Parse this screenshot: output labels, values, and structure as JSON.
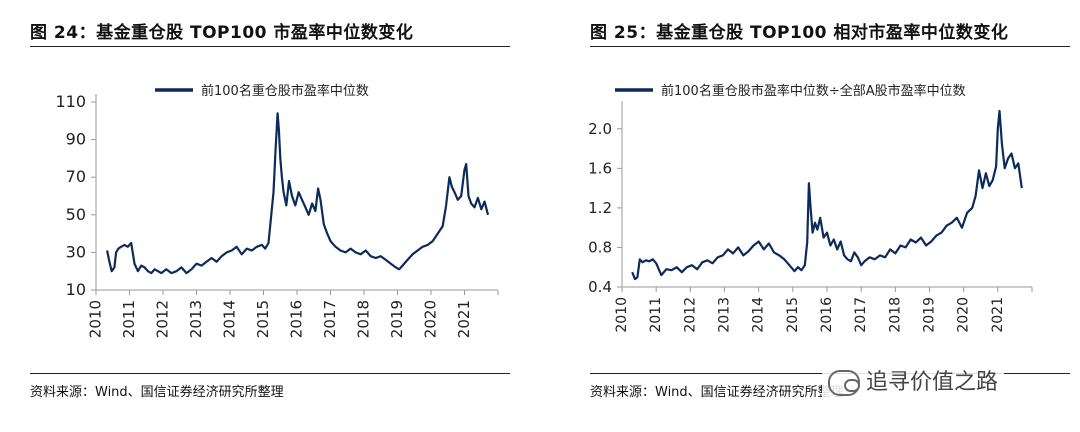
{
  "figures": {
    "left": {
      "title": "图 24：基金重仓股 TOP100 市盈率中位数变化",
      "source": "资料来源：Wind、国信证券经济研究所整理"
    },
    "right": {
      "title": "图 25：基金重仓股 TOP100 相对市盈率中位数变化",
      "source": "资料来源：Wind、国信证券经济研究所整理"
    }
  },
  "watermark": {
    "text": "追寻价值之路",
    "icon": "wechat-icon"
  },
  "colors": {
    "series": "#0d2b5a",
    "axis": "#9a9a9a",
    "rule": "#222222"
  },
  "chart_data": [
    {
      "type": "line",
      "title": "",
      "legend": [
        "前100名重仓股市盈率中位数"
      ],
      "legend_placement": "top-center",
      "xlim": [
        2010,
        2022
      ],
      "ylim": [
        10,
        110
      ],
      "yticks": [
        "10",
        "30",
        "50",
        "70",
        "90",
        "110"
      ],
      "xticks": [
        "2010",
        "2011",
        "2012",
        "2013",
        "2014",
        "2015",
        "2016",
        "2017",
        "2018",
        "2019",
        "2020",
        "2021"
      ],
      "grid": false,
      "series": [
        {
          "name": "前100名重仓股市盈率中位数",
          "x": [
            2010.33,
            2010.4,
            2010.47,
            2010.55,
            2010.6,
            2010.67,
            2010.75,
            2010.85,
            2010.95,
            2011.05,
            2011.15,
            2011.25,
            2011.35,
            2011.45,
            2011.55,
            2011.65,
            2011.75,
            2011.85,
            2011.95,
            2012.1,
            2012.25,
            2012.4,
            2012.55,
            2012.7,
            2012.85,
            2013.0,
            2013.15,
            2013.3,
            2013.45,
            2013.6,
            2013.75,
            2013.9,
            2014.05,
            2014.2,
            2014.35,
            2014.5,
            2014.65,
            2014.8,
            2014.95,
            2015.05,
            2015.15,
            2015.22,
            2015.3,
            2015.36,
            2015.42,
            2015.46,
            2015.5,
            2015.55,
            2015.6,
            2015.68,
            2015.76,
            2015.85,
            2015.95,
            2016.05,
            2016.15,
            2016.25,
            2016.35,
            2016.45,
            2016.55,
            2016.63,
            2016.7,
            2016.8,
            2016.9,
            2017.0,
            2017.15,
            2017.3,
            2017.45,
            2017.6,
            2017.75,
            2017.9,
            2018.05,
            2018.2,
            2018.35,
            2018.5,
            2018.65,
            2018.8,
            2018.95,
            2019.05,
            2019.15,
            2019.3,
            2019.45,
            2019.6,
            2019.75,
            2019.9,
            2020.05,
            2020.2,
            2020.35,
            2020.45,
            2020.55,
            2020.62,
            2020.7,
            2020.8,
            2020.9,
            2021.0,
            2021.05,
            2021.12,
            2021.2,
            2021.3,
            2021.4,
            2021.5,
            2021.6,
            2021.7
          ],
          "values": [
            31,
            25,
            20,
            22,
            30,
            32,
            33,
            34,
            33,
            35,
            24,
            20,
            23,
            22,
            20,
            19,
            21,
            20,
            19,
            21,
            19,
            20,
            22,
            19,
            21,
            24,
            23,
            25,
            27,
            25,
            28,
            30,
            31,
            33,
            29,
            32,
            31,
            33,
            34,
            32,
            35,
            48,
            62,
            85,
            104,
            95,
            80,
            70,
            62,
            55,
            68,
            60,
            55,
            62,
            58,
            54,
            50,
            56,
            52,
            64,
            58,
            45,
            40,
            36,
            33,
            31,
            30,
            32,
            30,
            29,
            31,
            28,
            27,
            28,
            26,
            24,
            22,
            21,
            23,
            26,
            29,
            31,
            33,
            34,
            36,
            40,
            44,
            55,
            70,
            65,
            62,
            58,
            60,
            74,
            77,
            60,
            56,
            54,
            59,
            53,
            57,
            50
          ]
        }
      ]
    },
    {
      "type": "line",
      "title": "",
      "legend": [
        "前100名重仓股市盈率中位数÷全部A股市盈率中位数"
      ],
      "legend_placement": "top-center",
      "xlim": [
        2010,
        2022
      ],
      "ylim": [
        0.4,
        2.2
      ],
      "yticks": [
        "0.4",
        "0.8",
        "1.2",
        "1.6",
        "2.0"
      ],
      "xticks": [
        "2010",
        "2011",
        "2012",
        "2013",
        "2014",
        "2015",
        "2016",
        "2017",
        "2018",
        "2019",
        "2020",
        "2021"
      ],
      "grid": false,
      "series": [
        {
          "name": "前100名重仓股市盈率中位数÷全部A股市盈率中位数",
          "x": [
            2010.3,
            2010.38,
            2010.45,
            2010.52,
            2010.6,
            2010.7,
            2010.8,
            2010.9,
            2011.0,
            2011.15,
            2011.3,
            2011.45,
            2011.6,
            2011.75,
            2011.9,
            2012.05,
            2012.2,
            2012.35,
            2012.5,
            2012.65,
            2012.8,
            2012.95,
            2013.1,
            2013.25,
            2013.4,
            2013.55,
            2013.7,
            2013.85,
            2014.0,
            2014.15,
            2014.3,
            2014.45,
            2014.6,
            2014.75,
            2014.9,
            2015.05,
            2015.15,
            2015.25,
            2015.35,
            2015.42,
            2015.47,
            2015.52,
            2015.58,
            2015.65,
            2015.72,
            2015.8,
            2015.9,
            2016.0,
            2016.1,
            2016.2,
            2016.3,
            2016.4,
            2016.5,
            2016.6,
            2016.7,
            2016.8,
            2016.9,
            2017.0,
            2017.1,
            2017.25,
            2017.4,
            2017.55,
            2017.7,
            2017.85,
            2018.0,
            2018.15,
            2018.3,
            2018.45,
            2018.6,
            2018.75,
            2018.9,
            2019.05,
            2019.2,
            2019.35,
            2019.5,
            2019.65,
            2019.8,
            2019.95,
            2020.1,
            2020.25,
            2020.35,
            2020.45,
            2020.55,
            2020.65,
            2020.75,
            2020.85,
            2020.95,
            2021.0,
            2021.05,
            2021.12,
            2021.2,
            2021.3,
            2021.4,
            2021.5,
            2021.6,
            2021.7
          ],
          "values": [
            0.55,
            0.48,
            0.5,
            0.68,
            0.65,
            0.67,
            0.66,
            0.68,
            0.64,
            0.52,
            0.58,
            0.57,
            0.6,
            0.55,
            0.6,
            0.62,
            0.58,
            0.65,
            0.67,
            0.64,
            0.7,
            0.72,
            0.78,
            0.74,
            0.8,
            0.72,
            0.76,
            0.82,
            0.86,
            0.78,
            0.84,
            0.75,
            0.72,
            0.68,
            0.62,
            0.56,
            0.6,
            0.57,
            0.62,
            0.85,
            1.45,
            1.2,
            0.95,
            1.05,
            0.98,
            1.1,
            0.9,
            0.95,
            0.82,
            0.88,
            0.78,
            0.86,
            0.72,
            0.68,
            0.66,
            0.75,
            0.7,
            0.62,
            0.66,
            0.7,
            0.68,
            0.72,
            0.7,
            0.78,
            0.74,
            0.82,
            0.8,
            0.88,
            0.85,
            0.9,
            0.82,
            0.86,
            0.92,
            0.95,
            1.02,
            1.05,
            1.1,
            1.0,
            1.15,
            1.2,
            1.32,
            1.58,
            1.4,
            1.55,
            1.42,
            1.48,
            1.62,
            2.0,
            2.18,
            1.85,
            1.6,
            1.7,
            1.75,
            1.6,
            1.65,
            1.4
          ]
        }
      ]
    }
  ]
}
